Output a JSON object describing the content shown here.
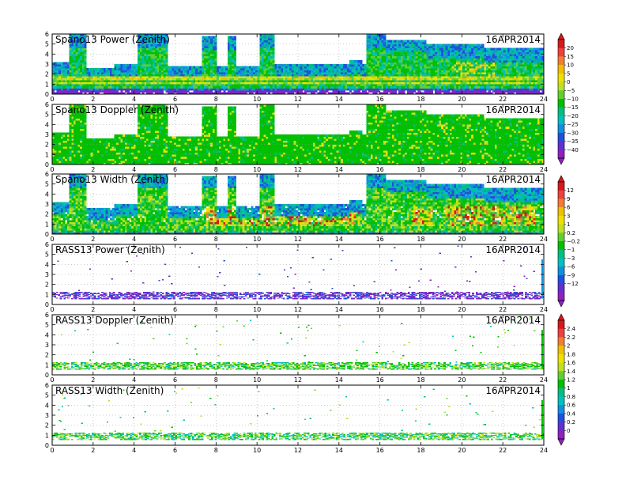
{
  "figure": {
    "type": "heatmap",
    "panels": [
      {
        "title": "Spano13 Power (Zenith)",
        "date": "16APR2014",
        "colorbar_group": 0,
        "kind": "profiler_power"
      },
      {
        "title": "Spano13 Doppler (Zenith)",
        "date": "16APR2014",
        "colorbar_group": 0,
        "kind": "profiler_doppler"
      },
      {
        "title": "Spano13 Width (Zenith)",
        "date": "16APR2014",
        "colorbar_group": 1,
        "kind": "profiler_width"
      },
      {
        "title": "RASS13 Power (Zenith)",
        "date": "16APR2014",
        "colorbar_group": 1,
        "kind": "rass_power"
      },
      {
        "title": "RASS13 Doppler (Zenith)",
        "date": "16APR2014",
        "colorbar_group": 2,
        "kind": "rass_doppler"
      },
      {
        "title": "RASS13 Width (Zenith)",
        "date": "16APR2014",
        "colorbar_group": 2,
        "kind": "rass_width"
      }
    ],
    "x_ticks": [
      "0",
      "2",
      "4",
      "6",
      "8",
      "10",
      "12",
      "14",
      "16",
      "18",
      "20",
      "22",
      "24"
    ],
    "y_ticks": [
      "0",
      "1",
      "2",
      "3",
      "4",
      "5",
      "6"
    ],
    "colorbars": [
      {
        "labels": [
          "20",
          "15",
          "10",
          "5",
          "0",
          "−5",
          "−10",
          "−15",
          "−20",
          "−25",
          "−30",
          "−35",
          "−40"
        ],
        "colors": [
          "#d7191c",
          "#f04040",
          "#f08030",
          "#f0c000",
          "#f0e000",
          "#c0e020",
          "#60d030",
          "#00c000",
          "#00c080",
          "#00c0c0",
          "#1090e0",
          "#2050e0",
          "#6030d0",
          "#9020c0"
        ]
      },
      {
        "labels": [
          "12",
          "9",
          "6",
          "3",
          "1",
          "0.2",
          "−0.2",
          "−1",
          "−3",
          "−6",
          "−9",
          "−12"
        ],
        "colors": [
          "#d7191c",
          "#f04040",
          "#f08030",
          "#f0c000",
          "#f0e000",
          "#c0e020",
          "#60d030",
          "#00c000",
          "#00c080",
          "#00c0c0",
          "#1090e0",
          "#2050e0",
          "#6030d0",
          "#9020c0"
        ]
      },
      {
        "labels": [
          "2.4",
          "2.2",
          "2",
          "1.8",
          "1.6",
          "1.4",
          "1.2",
          "1",
          "0.8",
          "0.6",
          "0.4",
          "0.2",
          "0"
        ],
        "colors": [
          "#d7191c",
          "#f04040",
          "#f08030",
          "#f0c000",
          "#f0e000",
          "#c0e020",
          "#60d030",
          "#00c000",
          "#00c080",
          "#00c0c0",
          "#1090e0",
          "#2050e0",
          "#6030d0",
          "#9020c0"
        ]
      }
    ]
  },
  "chart_data": {
    "type": "heatmap",
    "x_range": [
      0,
      24
    ],
    "y_range": [
      0,
      6
    ],
    "grid": true,
    "series": [
      {
        "name": "Spano13 Power (Zenith)",
        "colorbar": 0
      },
      {
        "name": "Spano13 Doppler (Zenith)",
        "colorbar": 0
      },
      {
        "name": "Spano13 Width (Zenith)",
        "colorbar": 1
      },
      {
        "name": "RASS13 Power (Zenith)",
        "colorbar": 1
      },
      {
        "name": "RASS13 Doppler (Zenith)",
        "colorbar": 2
      },
      {
        "name": "RASS13 Width (Zenith)",
        "colorbar": 2
      }
    ],
    "profiler_max_height_segments": [
      [
        0.0,
        0.8,
        3.2
      ],
      [
        0.8,
        1.6,
        5.9
      ],
      [
        1.6,
        3.0,
        2.6
      ],
      [
        3.0,
        4.1,
        3.0
      ],
      [
        4.1,
        5.6,
        5.9
      ],
      [
        5.6,
        7.3,
        2.7
      ],
      [
        7.3,
        8.0,
        5.8
      ],
      [
        8.0,
        8.5,
        2.8
      ],
      [
        8.5,
        8.9,
        5.8
      ],
      [
        8.9,
        10.1,
        2.8
      ],
      [
        10.1,
        10.8,
        5.9
      ],
      [
        10.8,
        14.5,
        2.9
      ],
      [
        14.5,
        15.1,
        3.3
      ],
      [
        15.1,
        15.3,
        2.9
      ],
      [
        15.3,
        16.2,
        5.9
      ],
      [
        16.2,
        18.2,
        5.4
      ],
      [
        18.2,
        21.0,
        4.9
      ],
      [
        21.0,
        24.0,
        4.5
      ]
    ]
  }
}
